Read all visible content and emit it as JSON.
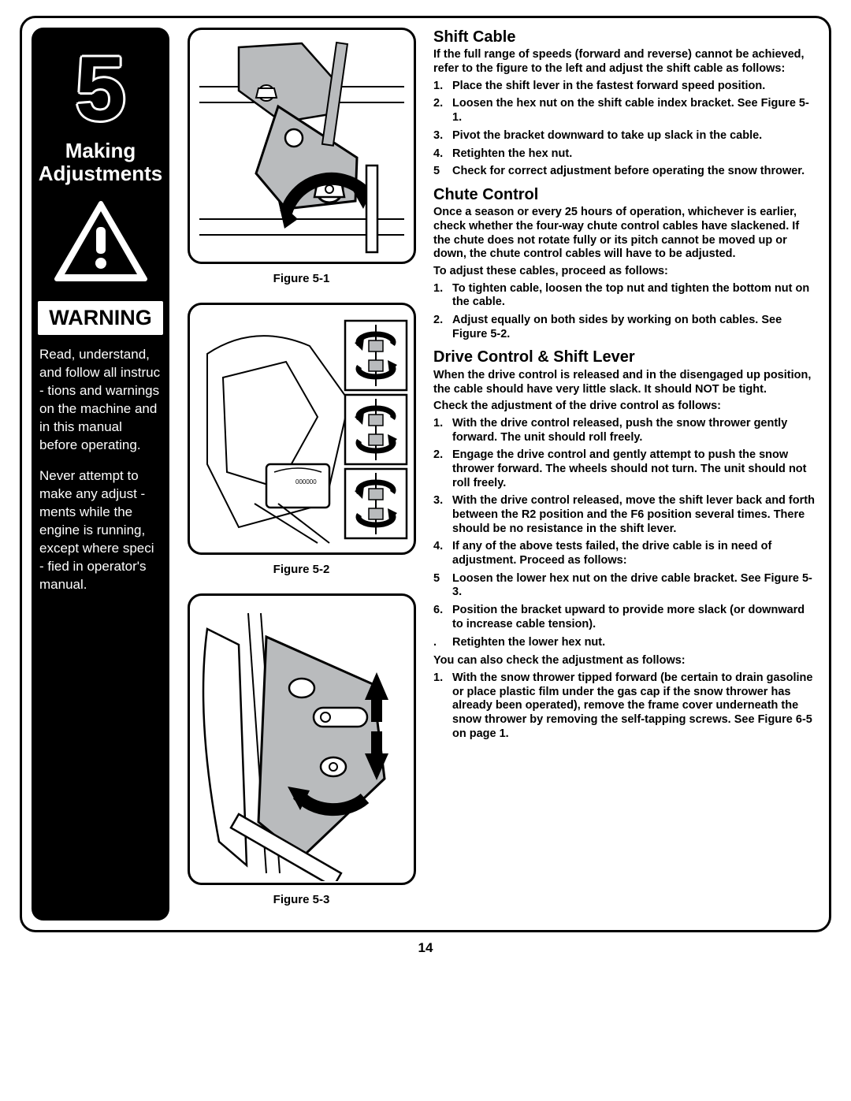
{
  "sidebar": {
    "chapter_number": "5",
    "title_line1": "Making",
    "title_line2": "Adjustments",
    "warning_label": "WARNING",
    "para1": "Read, understand, and follow all instruc   - tions and warnings on the machine and in this manual before operating.",
    "para2": "Never attempt to make any adjust   - ments while the engine is running, except where speci   - fied in operator's manual."
  },
  "figures": {
    "fig1_caption": "Figure 5-1",
    "fig2_caption": "Figure 5-2",
    "fig3_caption": "Figure 5-3"
  },
  "sections": {
    "shift": {
      "heading": "Shift Cable",
      "intro": "If the full range of speeds (forward and reverse) cannot be achieved, refer to the figure to the left and adjust the shift cable as follows:",
      "items": [
        {
          "n": "1.",
          "t": "Place the shift lever in the fastest   forward speed position."
        },
        {
          "n": "2.",
          "t": "Loosen the hex nut on the shift cable index bracket. See Figure 5-1."
        },
        {
          "n": "3.",
          "t": "Pivot the bracket downward to take up slack in the cable."
        },
        {
          "n": "4.",
          "t": "Retighten the hex nut."
        },
        {
          "n": "5",
          "t": "Check for correct adjustment before operating the snow thrower."
        }
      ]
    },
    "chute": {
      "heading": "Chute Control",
      "intro": "Once a season or every 25 hours of operation, whichever is earlier, check whether the four-way chute control cables have slackened. If the chute does not rotate fully or its pitch cannot be moved up or down, the chute control cables will have to be adjusted.",
      "sub": "To adjust these cables, proceed as follows:",
      "items": [
        {
          "n": "1.",
          "t": "To tighten cable, loosen the top nut and tighten the bottom nut on the cable."
        },
        {
          "n": "2.",
          "t": "Adjust equally on both sides by working on both cables. See Figure 5-2."
        }
      ]
    },
    "drive": {
      "heading": "Drive Control & Shift Lever",
      "intro": "When the drive control is released and in the disengaged up position, the cable should have very little slack. It should NOT be tight.",
      "sub": "Check the adjustment of the drive control as follows:",
      "items": [
        {
          "n": "1.",
          "t": "With the drive control released, push the snow thrower gently forward. The unit should roll freely."
        },
        {
          "n": "2.",
          "t": "Engage the drive control and gently attempt to push the snow thrower forward. The wheels should not turn. The unit should not roll freely."
        },
        {
          "n": "3.",
          "t": "With the drive control released, move the shift lever back and forth between the R2 position and the F6 position several times. There should be no resistance in the shift lever."
        },
        {
          "n": "4.",
          "t": "If any of the above tests failed, the drive cable is in need of adjustment. Proceed as follows:"
        },
        {
          "n": "5",
          "t": "Loosen the lower hex nut on the drive cable bracket. See Figure 5-3."
        },
        {
          "n": "6.",
          "t": "Position the bracket upward to provide more slack (or downward to increase cable tension)."
        },
        {
          "n": ".",
          "t": "Retighten the lower hex nut."
        }
      ],
      "sub2": "You can also check the adjustment as follows:",
      "items2": [
        {
          "n": "1.",
          "t": "With the snow thrower tipped forward (be certain to drain gasoline or place plastic film under the gas cap if the snow thrower has already been operated), remove the frame cover underneath the snow thrower by removing the self-tapping screws.  See Figure 6-5 on page 1."
        }
      ]
    }
  },
  "page_number": "14",
  "colors": {
    "black": "#000000",
    "white": "#ffffff",
    "gray": "#b9bbbd"
  }
}
